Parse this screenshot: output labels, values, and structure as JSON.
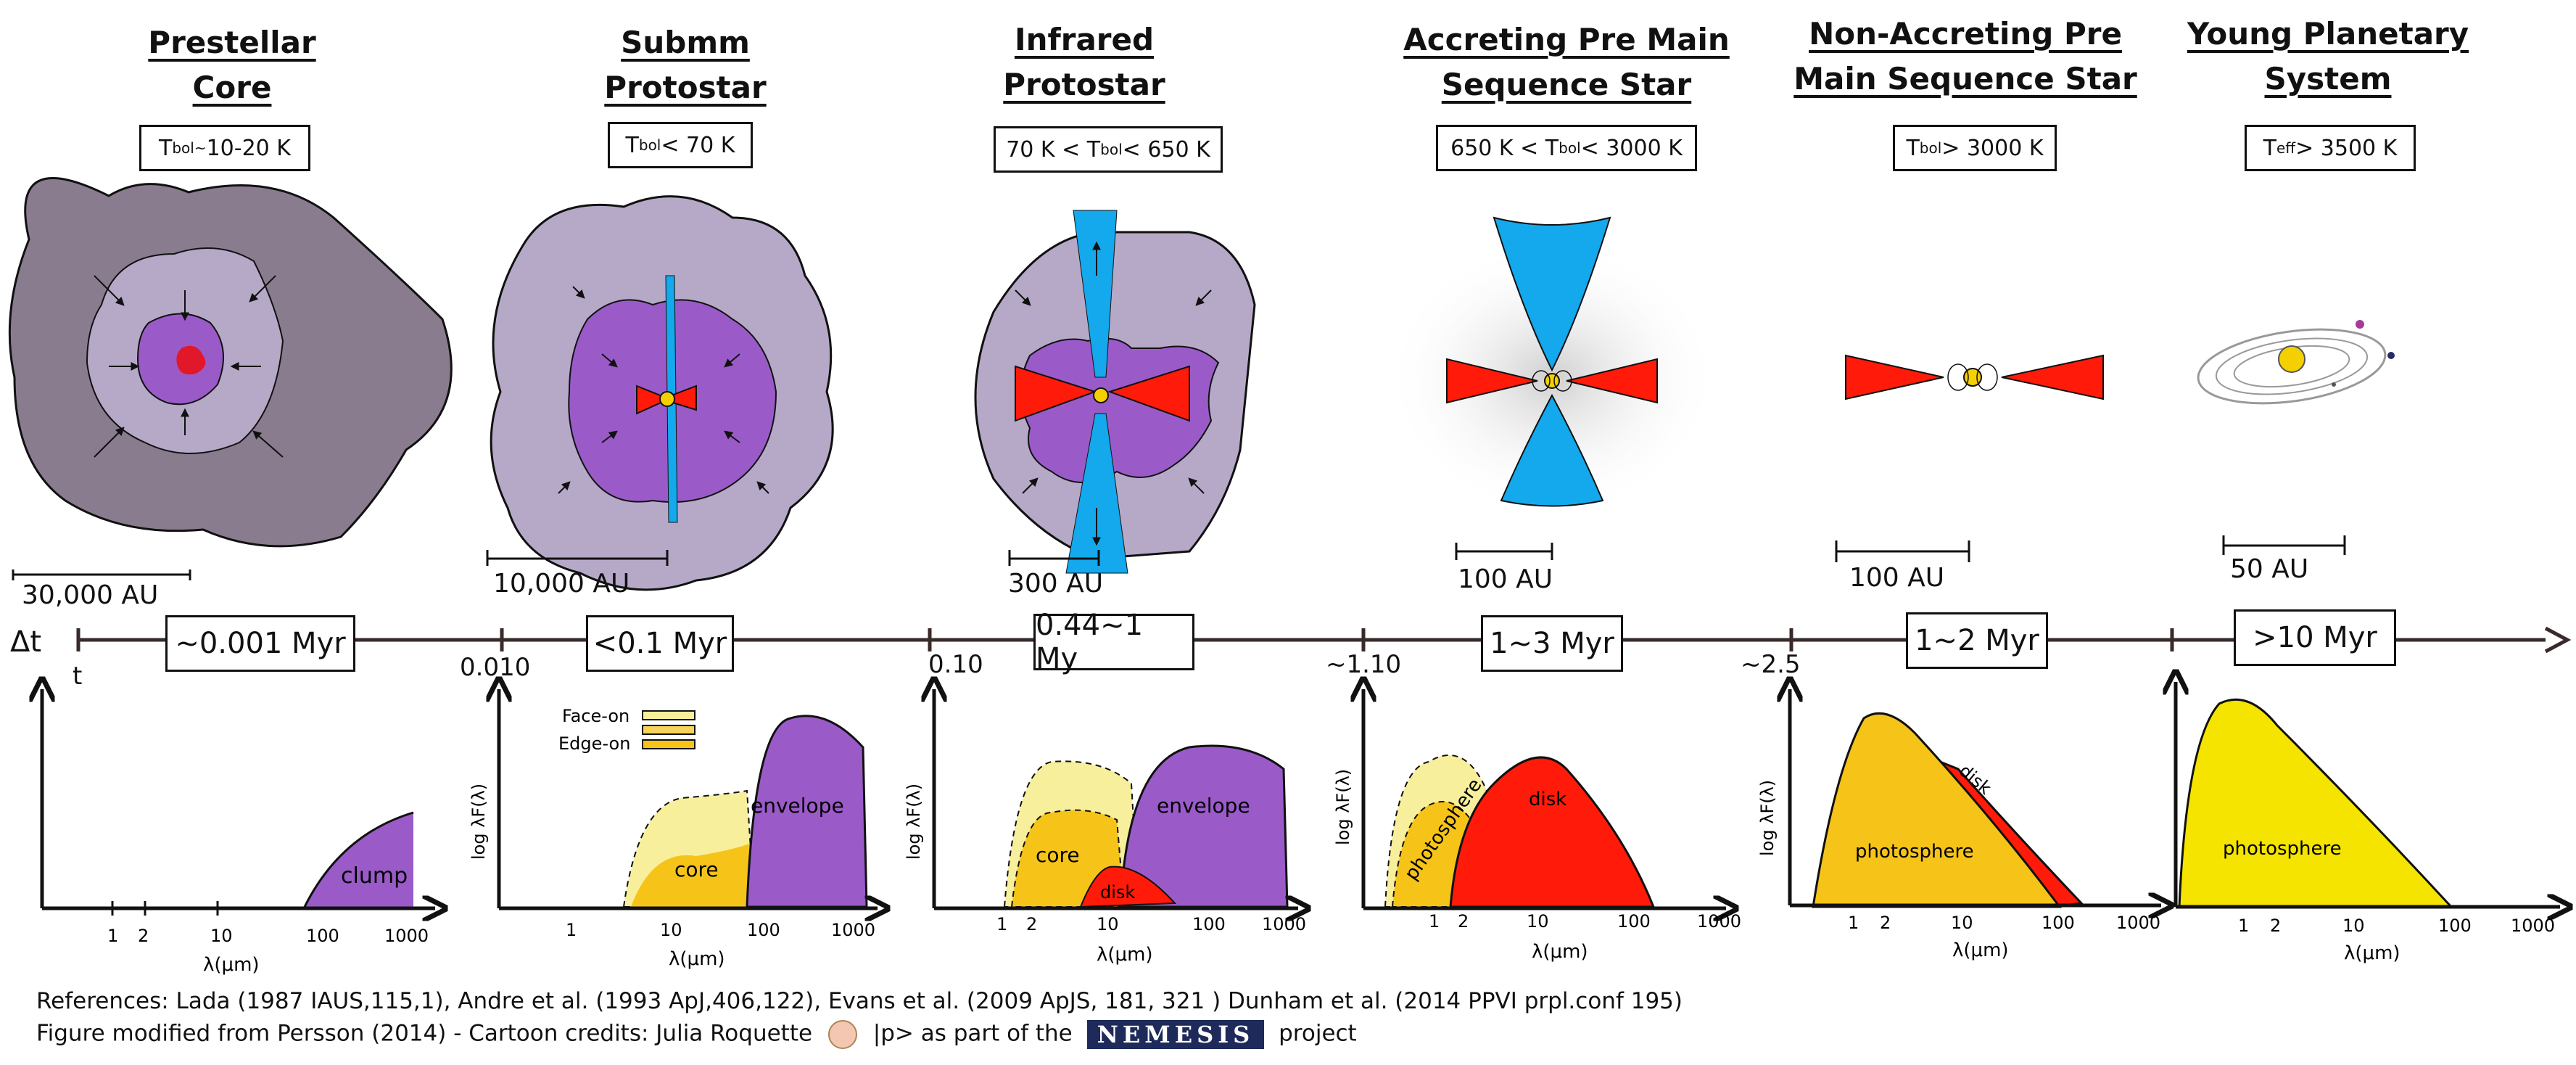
{
  "stages": [
    {
      "title_line1": "Prestellar",
      "title_line2": "Core",
      "temp_main": "T",
      "temp_sub": "bol~",
      "temp_rest": "10-20 K",
      "scale": "30,000 AU",
      "duration": "~0.001 Myr"
    },
    {
      "title_line1": "Submm",
      "title_line2": "Protostar",
      "temp_main": "T",
      "temp_sub": "bol",
      "temp_rest": "< 70 K",
      "scale": "10,000 AU",
      "duration": "<0.1 Myr"
    },
    {
      "title_line1": "Infrared",
      "title_line2": "Protostar",
      "temp_pre": "70 K < T",
      "temp_sub": "bol",
      "temp_rest": "< 650 K",
      "scale": "300 AU",
      "duration": "0.44~1 My"
    },
    {
      "title_line1": "Accreting Pre Main",
      "title_line2": "Sequence Star",
      "temp_pre": "650 K < T",
      "temp_sub": "bol",
      "temp_rest": "< 3000 K",
      "scale": "100 AU",
      "duration": "1~3 Myr"
    },
    {
      "title_line1": "Non-Accreting Pre",
      "title_line2": "Main Sequence Star",
      "temp_main": "T",
      "temp_sub": "bol",
      "temp_rest": "> 3000 K",
      "scale": "100 AU",
      "duration": "1~2 Myr"
    },
    {
      "title_line1": "Young Planetary",
      "title_line2": "System",
      "temp_main": "T",
      "temp_sub": "eff",
      "temp_rest": " > 3500 K",
      "scale": "50 AU",
      "duration": ">10 Myr"
    }
  ],
  "timeline": {
    "delta_t": "Δt",
    "t": "t",
    "ticks": [
      "0.010",
      "0.10",
      "~1.10",
      "~2.5"
    ]
  },
  "sed": {
    "ylabel": "log λF(λ)",
    "xlabel": "λ(μm)",
    "legend_face_on": "Face-on",
    "legend_edge_on": "Edge-on",
    "labels": {
      "clump": "clump",
      "core": "core",
      "envelope": "envelope",
      "disk": "disk",
      "photosphere": "photosphere"
    },
    "x_ticks_1": [
      "1",
      "2",
      "10",
      "100",
      "1000"
    ],
    "x_ticks_2": [
      "1",
      "10",
      "100",
      "1000"
    ],
    "x_ticks_5": [
      "1",
      "2",
      "10",
      "100",
      "1000"
    ]
  },
  "references": {
    "line1": "References: Lada (1987 IAUS,115,1),  Andre et al. (1993 ApJ,406,122), Evans et al. (2009  ApJS, 181, 321 ) Dunham et al. (2014 PPVI prpl.conf 195)",
    "line2_a": "Figure modified from Persson (2014) - Cartoon credits: Julia Roquette",
    "line2_b": "|p> as part of the",
    "logo": "NEMESIS",
    "line2_c": "project"
  },
  "colors": {
    "dark_gray": "#8a7c8f",
    "lavender": "#b6a9c8",
    "purple": "#9a5bc9",
    "red": "#ff1a0a",
    "blue": "#14a8ec",
    "yellow": "#f5d000",
    "light_yellow": "#f7ef9c",
    "orange_yellow": "#f6c419"
  }
}
